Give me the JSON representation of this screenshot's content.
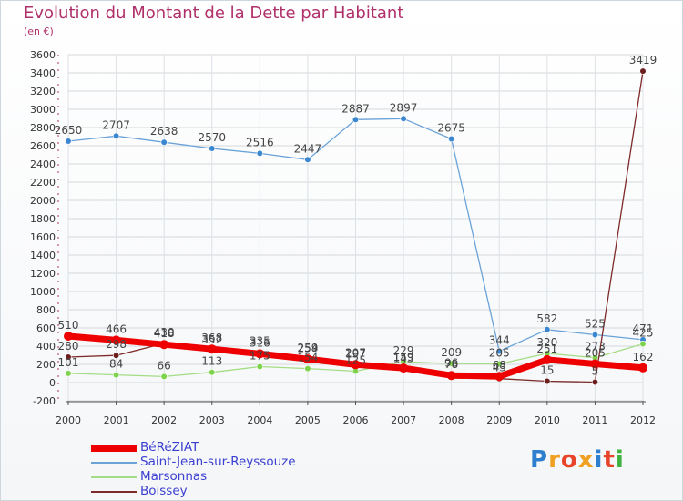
{
  "title": "Evolution du Montant de la Dette par Habitant",
  "subtitle": "(en €)",
  "logo": {
    "text": "Proxiti",
    "colors": [
      "#2f7fd0",
      "#f0a020",
      "#e8442a",
      "#f0a020",
      "#2f7fd0",
      "#e8442a",
      "#40b040"
    ]
  },
  "chart_data": {
    "type": "line",
    "x": [
      "2000",
      "2001",
      "2002",
      "2003",
      "2004",
      "2005",
      "2006",
      "2007",
      "2008",
      "2009",
      "2010",
      "2011",
      "2012"
    ],
    "ylim": [
      -200,
      3600
    ],
    "yticks": [
      -200,
      0,
      200,
      400,
      600,
      800,
      1000,
      1200,
      1400,
      1600,
      1800,
      2000,
      2200,
      2400,
      2600,
      2800,
      3000,
      3200,
      3400,
      3600
    ],
    "grid": true,
    "legend_position": "bottom-left",
    "series": [
      {
        "name": "Saint-Jean-sur-Reyssouze",
        "color": "#6aa3d8",
        "marker": "#3a86d0",
        "width": 1.3,
        "values": [
          2650,
          2707,
          2638,
          2570,
          2516,
          2447,
          2887,
          2897,
          2675,
          344,
          582,
          525,
          471
        ]
      },
      {
        "name": "Marsonnas",
        "color": "#a4dd86",
        "marker": "#7ed34c",
        "width": 1.3,
        "values": [
          101,
          84,
          66,
          113,
          175,
          154,
          125,
          229,
          209,
          205,
          320,
          273,
          425
        ]
      },
      {
        "name": "Boissey",
        "color": "#7e2a2a",
        "marker": "#6b1e1e",
        "width": 1.3,
        "values": [
          280,
          298,
          430,
          352,
          335,
          254,
          207,
          143,
          96,
          43,
          15,
          5,
          3419
        ]
      },
      {
        "name": "BéRéZIAT",
        "color": "#ee0000",
        "marker": "#ee0000",
        "width": 7,
        "values": [
          510,
          466,
          418,
          368,
          316,
          259,
          197,
          159,
          78,
          68,
          251,
          205,
          162
        ]
      }
    ],
    "legend_order": [
      "BéRéZIAT",
      "Saint-Jean-sur-Reyssouze",
      "Marsonnas",
      "Boissey"
    ]
  }
}
